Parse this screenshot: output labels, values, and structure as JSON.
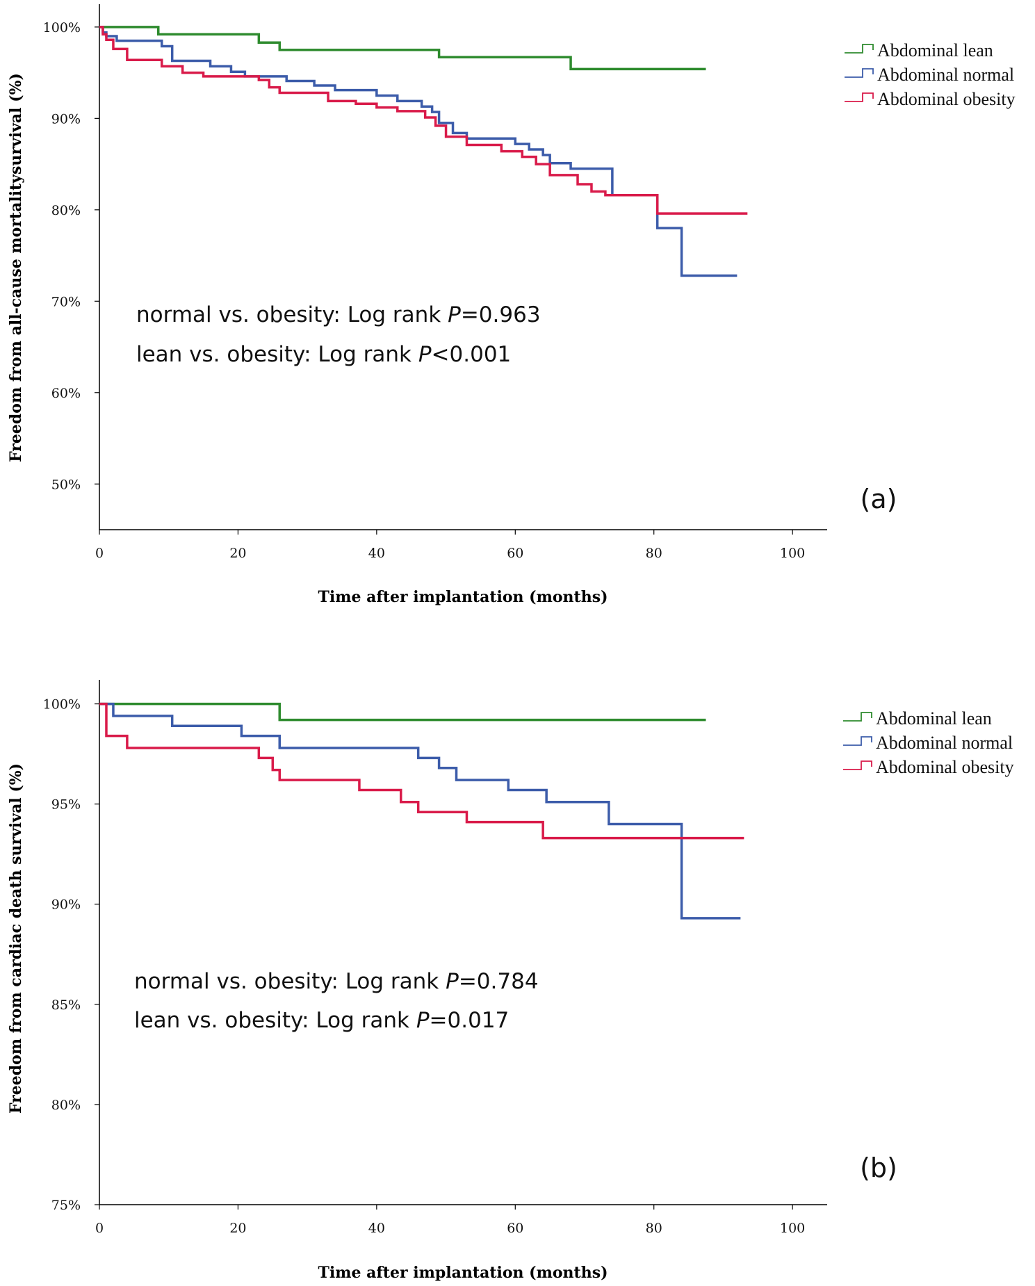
{
  "chart_data": [
    {
      "type": "line",
      "panel": "(a)",
      "xlabel": "Time after implantation (months)",
      "ylabel": "Freedom from all-cause mortalitysurvival (%)",
      "xlim": [
        0,
        105
      ],
      "ylim": [
        45,
        102.5
      ],
      "x_ticks": [
        0,
        20,
        40,
        60,
        80,
        100
      ],
      "y_ticks": [
        50,
        60,
        70,
        80,
        90,
        100
      ],
      "y_tick_labels": [
        "50%",
        "60%",
        "70%",
        "80%",
        "90%",
        "100%"
      ],
      "legend": [
        "Abdominal lean",
        "Abdominal normal",
        "Abdominal obesity"
      ],
      "annotations": [
        {
          "prefix": "normal vs. obesity: Log rank ",
          "p": "P",
          "value": "=0.963"
        },
        {
          "prefix": "lean vs. obesity: Log rank ",
          "p": "P",
          "value": "<0.001"
        }
      ],
      "series": [
        {
          "name": "Abdominal lean",
          "color": "#2e8b2e",
          "x": [
            0,
            8.5,
            23,
            26,
            49,
            68,
            87.5
          ],
          "y": [
            100,
            99.2,
            98.3,
            97.5,
            96.7,
            95.4,
            95.4
          ]
        },
        {
          "name": "Abdominal normal",
          "color": "#3c5caa",
          "x": [
            0,
            0.5,
            1,
            2.5,
            9,
            10.5,
            16,
            19,
            21,
            27,
            31,
            34,
            40,
            43,
            46.5,
            48,
            49,
            51,
            53,
            60,
            62,
            64,
            65,
            68,
            74,
            80.5,
            84,
            92
          ],
          "y": [
            100,
            99.4,
            99,
            98.5,
            97.9,
            96.3,
            95.7,
            95.1,
            94.6,
            94.1,
            93.6,
            93.1,
            92.5,
            91.9,
            91.3,
            90.7,
            89.5,
            88.4,
            87.8,
            87.2,
            86.6,
            86,
            85.1,
            84.5,
            81.6,
            78,
            72.8,
            72.8
          ],
          "stairs": true
        },
        {
          "name": "Abdominal obesity",
          "color": "#d91b4a",
          "x": [
            0,
            0.5,
            1,
            2,
            4,
            9,
            12,
            15,
            23,
            24.5,
            26,
            33,
            37,
            40,
            43,
            47,
            48.5,
            50,
            53,
            58,
            61,
            63,
            65,
            69,
            71,
            73,
            80.5,
            93.5
          ],
          "y": [
            100,
            99.2,
            98.6,
            97.6,
            96.4,
            95.7,
            95,
            94.6,
            94.2,
            93.4,
            92.8,
            91.9,
            91.6,
            91.2,
            90.8,
            90.1,
            89.2,
            88,
            87.1,
            86.4,
            85.8,
            85,
            83.8,
            82.8,
            82,
            81.6,
            79.6,
            79.6
          ],
          "stairs": true
        }
      ]
    },
    {
      "type": "line",
      "panel": "(b)",
      "xlabel": "Time after implantation (months)",
      "ylabel": "Freedom from cardiac death survival (%)",
      "xlim": [
        0,
        105
      ],
      "ylim": [
        75,
        101.2
      ],
      "x_ticks": [
        0,
        20,
        40,
        60,
        80,
        100
      ],
      "y_ticks": [
        75,
        80,
        85,
        90,
        95,
        100
      ],
      "y_tick_labels": [
        "75%",
        "80%",
        "85%",
        "90%",
        "95%",
        "100%"
      ],
      "legend": [
        "Abdominal lean",
        "Abdominal normal",
        "Abdominal obesity"
      ],
      "annotations": [
        {
          "prefix": "normal vs. obesity: Log rank ",
          "p": "P",
          "value": "=0.784"
        },
        {
          "prefix": "lean vs. obesity: Log rank ",
          "p": "P",
          "value": "=0.017"
        }
      ],
      "series": [
        {
          "name": "Abdominal lean",
          "color": "#2e8b2e",
          "x": [
            0,
            26,
            87.5
          ],
          "y": [
            100,
            99.2,
            99.2
          ]
        },
        {
          "name": "Abdominal normal",
          "color": "#3c5caa",
          "x": [
            0,
            2,
            10.5,
            20.5,
            26,
            46,
            49,
            51.5,
            59,
            64.5,
            73.5,
            84,
            92.5
          ],
          "y": [
            100,
            99.4,
            98.9,
            98.4,
            97.8,
            97.3,
            96.8,
            96.2,
            95.7,
            95.1,
            94.0,
            89.3,
            89.3
          ],
          "stairs": true
        },
        {
          "name": "Abdominal obesity",
          "color": "#d91b4a",
          "x": [
            0,
            1,
            4,
            23,
            25,
            26,
            37.5,
            43.5,
            46,
            53,
            64,
            93
          ],
          "y": [
            100,
            98.4,
            97.8,
            97.3,
            96.7,
            96.2,
            95.7,
            95.1,
            94.6,
            94.1,
            93.3,
            93.3
          ],
          "stairs": true
        }
      ]
    }
  ]
}
